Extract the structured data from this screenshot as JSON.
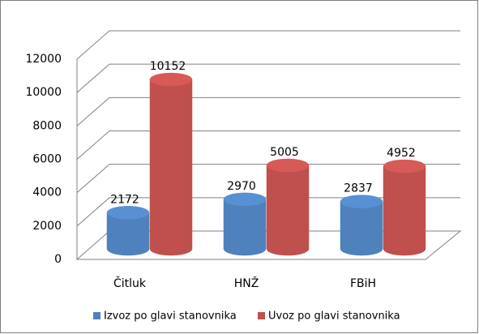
{
  "chart_data": {
    "type": "bar",
    "categories": [
      "Čitluk",
      "HNŽ",
      "FBiH"
    ],
    "series": [
      {
        "name": "Izvoz po glavi stanovnika",
        "color": "#4f81bd",
        "values": [
          2172,
          2970,
          2837
        ]
      },
      {
        "name": "Uvoz po glavi stanovnika",
        "color": "#c0504d",
        "values": [
          10152,
          5005,
          4952
        ]
      }
    ],
    "ylim": [
      0,
      12000
    ],
    "yticks": [
      0,
      2000,
      4000,
      6000,
      8000,
      10000,
      12000
    ],
    "grid": true,
    "legend": "bottom"
  }
}
